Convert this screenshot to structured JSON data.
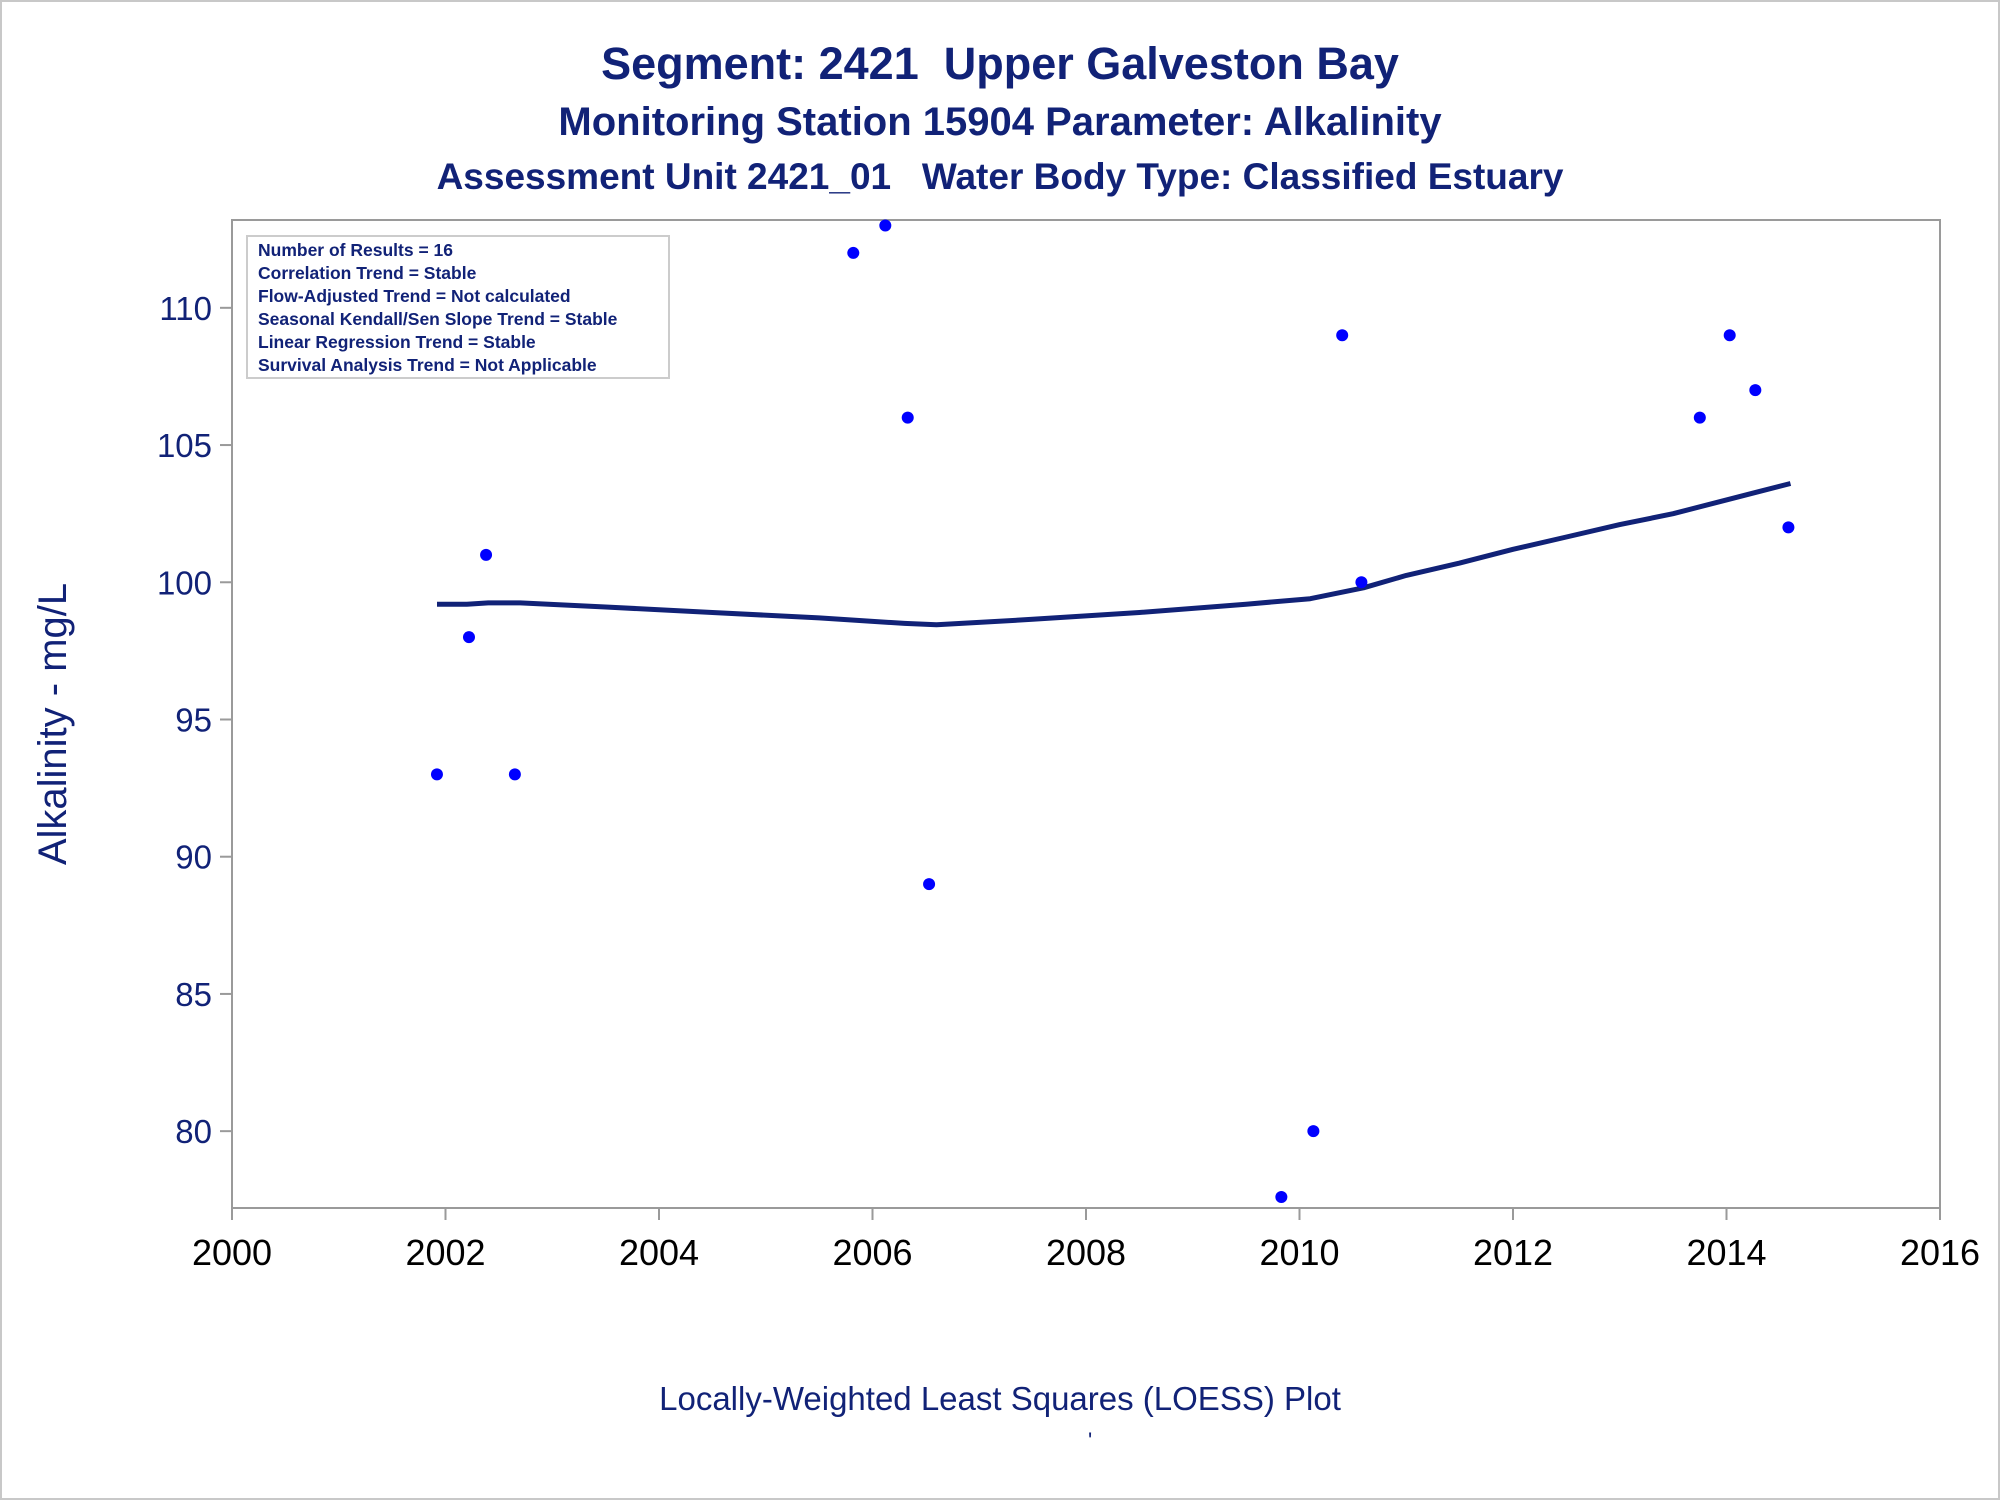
{
  "chart_data": {
    "type": "scatter",
    "title": "Segment: 2421  Upper Galveston Bay",
    "subtitle": "Monitoring Station 15904 Parameter: Alkalinity",
    "subtitle2": "Assessment Unit 2421_01   Water Body Type: Classified Estuary",
    "ylabel": "Alkalinity - mg/L",
    "xlabel": "",
    "footnote": "Locally-Weighted Least Squares (LOESS) Plot",
    "footnote_mark": "'",
    "xlim": [
      2000,
      2016
    ],
    "ylim": [
      77.2,
      113.2
    ],
    "xticks": [
      2000,
      2002,
      2004,
      2006,
      2008,
      2010,
      2012,
      2014,
      2016
    ],
    "yticks": [
      80,
      85,
      90,
      95,
      100,
      105,
      110
    ],
    "grid": false,
    "colors": {
      "points": "#0000ff",
      "line": "#112277",
      "text": "#112277"
    },
    "stats_box": [
      "Number of Results = 16",
      "Correlation Trend = Stable",
      "Flow-Adjusted Trend = Not calculated",
      "Seasonal Kendall/Sen Slope Trend = Stable",
      "Linear Regression Trend = Stable",
      "Survival Analysis Trend = Not Applicable"
    ],
    "points": [
      {
        "x": 2001.92,
        "y": 93
      },
      {
        "x": 2002.22,
        "y": 98
      },
      {
        "x": 2002.38,
        "y": 101
      },
      {
        "x": 2002.65,
        "y": 93
      },
      {
        "x": 2005.82,
        "y": 112
      },
      {
        "x": 2006.12,
        "y": 113
      },
      {
        "x": 2006.33,
        "y": 106
      },
      {
        "x": 2006.53,
        "y": 89
      },
      {
        "x": 2009.83,
        "y": 77.6
      },
      {
        "x": 2010.13,
        "y": 80
      },
      {
        "x": 2010.4,
        "y": 109
      },
      {
        "x": 2010.58,
        "y": 100
      },
      {
        "x": 2013.75,
        "y": 106
      },
      {
        "x": 2014.03,
        "y": 109
      },
      {
        "x": 2014.27,
        "y": 107
      },
      {
        "x": 2014.58,
        "y": 102
      }
    ],
    "series": [
      {
        "type": "line",
        "values": [
          [
            2001.92,
            99.2
          ],
          [
            2002.2,
            99.2
          ],
          [
            2002.4,
            99.25
          ],
          [
            2002.7,
            99.25
          ],
          [
            2003.5,
            99.1
          ],
          [
            2004.5,
            98.9
          ],
          [
            2005.5,
            98.7
          ],
          [
            2006.3,
            98.5
          ],
          [
            2006.6,
            98.45
          ],
          [
            2007.5,
            98.65
          ],
          [
            2008.5,
            98.9
          ],
          [
            2009.5,
            99.2
          ],
          [
            2010.1,
            99.4
          ],
          [
            2010.6,
            99.8
          ],
          [
            2011.0,
            100.25
          ],
          [
            2011.5,
            100.7
          ],
          [
            2012.0,
            101.2
          ],
          [
            2012.5,
            101.65
          ],
          [
            2013.0,
            102.1
          ],
          [
            2013.5,
            102.5
          ],
          [
            2014.0,
            103.0
          ],
          [
            2014.3,
            103.3
          ],
          [
            2014.6,
            103.6
          ]
        ]
      }
    ]
  }
}
